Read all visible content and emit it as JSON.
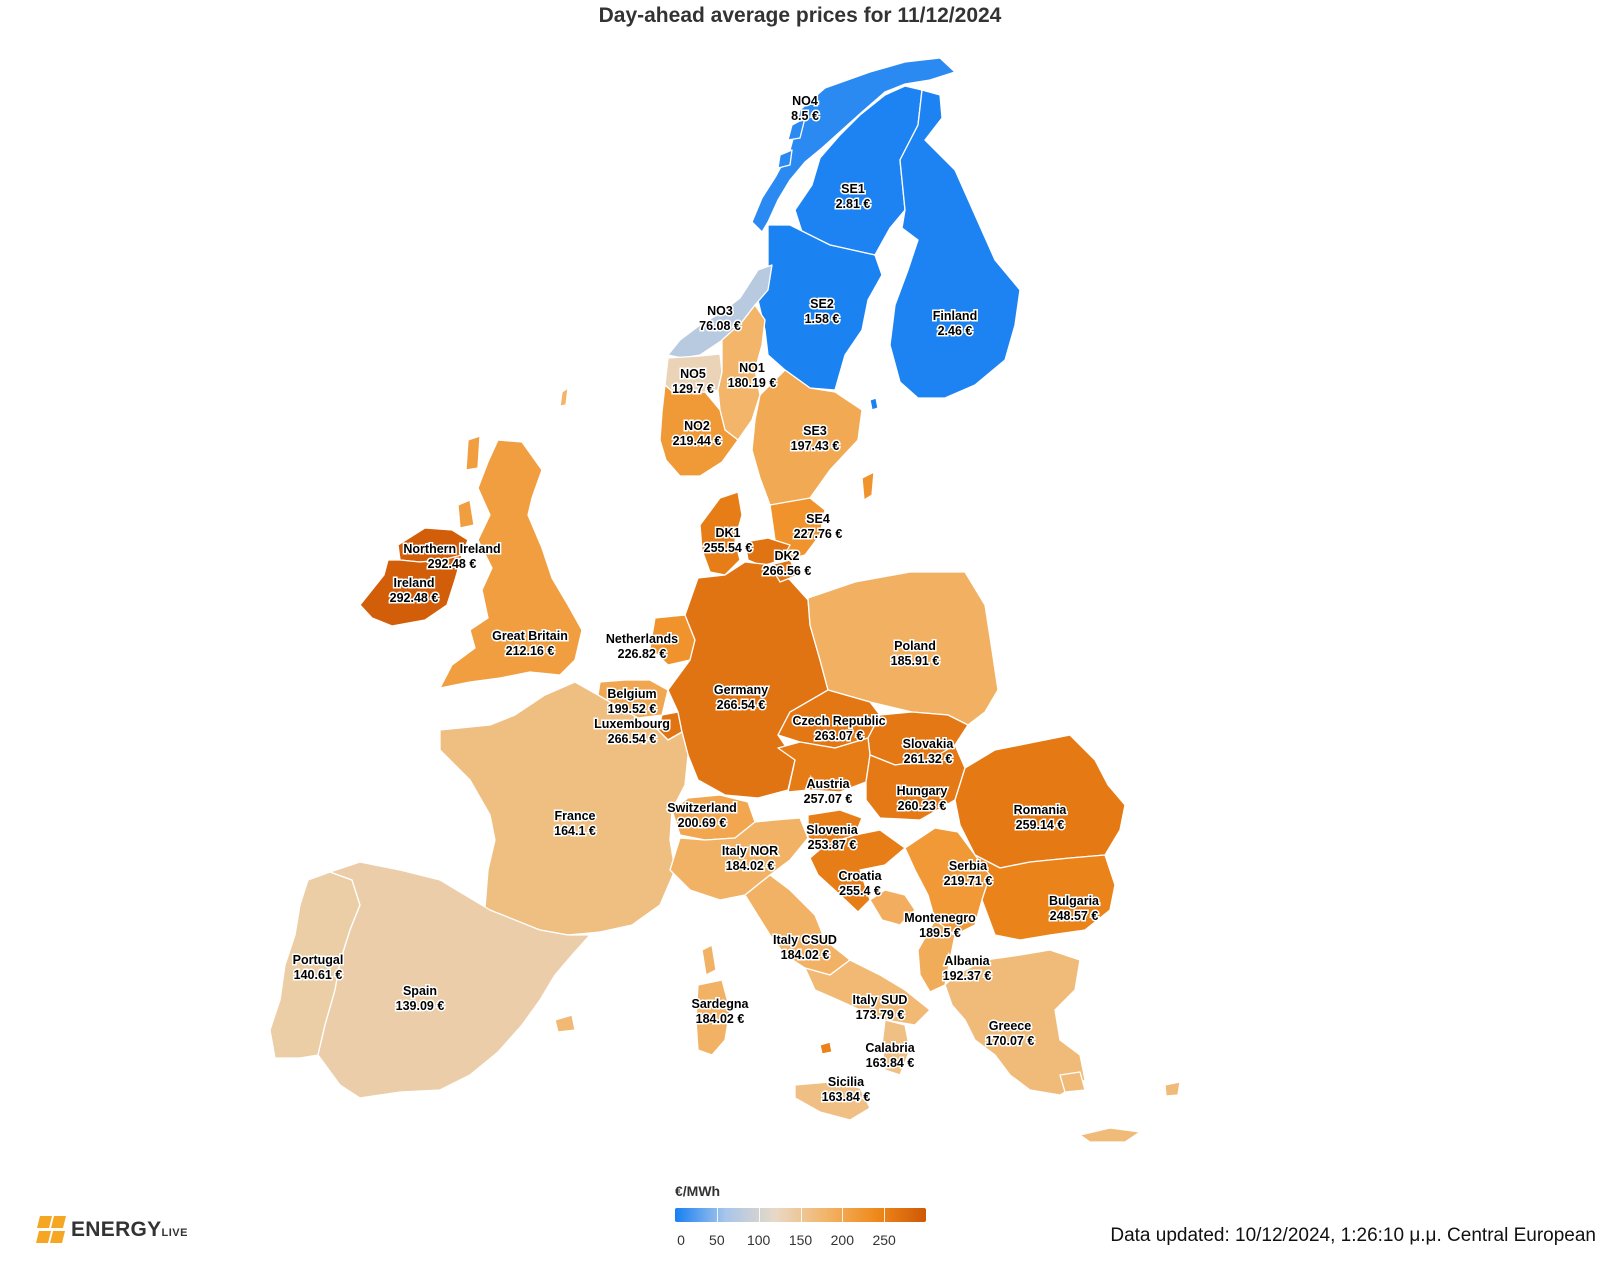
{
  "title": "Day-ahead average prices for 11/12/2024",
  "legend": {
    "unit": "€/MWh",
    "ticks": [
      0,
      50,
      100,
      150,
      200,
      250
    ],
    "min": 0,
    "max": 300,
    "colors": [
      "#1780f2",
      "#a7c5ea",
      "#e8d9c6",
      "#f2b56a",
      "#ef8a1c",
      "#cf5806"
    ]
  },
  "footnote": "Data updated: 10/12/2024, 1:26:10 μ.μ. Central European",
  "brand": {
    "name": "ENERGY",
    "suffix": "LIVE",
    "color": "#f5a623"
  },
  "regions": [
    {
      "key": "no4",
      "name": "NO4",
      "price": "8.5 €",
      "value": 8.5
    },
    {
      "key": "se1",
      "name": "SE1",
      "price": "2.81 €",
      "value": 2.81
    },
    {
      "key": "se2",
      "name": "SE2",
      "price": "1.58 €",
      "value": 1.58
    },
    {
      "key": "finland",
      "name": "Finland",
      "price": "2.46 €",
      "value": 2.46
    },
    {
      "key": "no3",
      "name": "NO3",
      "price": "76.08 €",
      "value": 76.08
    },
    {
      "key": "no5",
      "name": "NO5",
      "price": "129.7 €",
      "value": 129.7
    },
    {
      "key": "no1",
      "name": "NO1",
      "price": "180.19 €",
      "value": 180.19
    },
    {
      "key": "no2",
      "name": "NO2",
      "price": "219.44 €",
      "value": 219.44
    },
    {
      "key": "se3",
      "name": "SE3",
      "price": "197.43 €",
      "value": 197.43
    },
    {
      "key": "se4",
      "name": "SE4",
      "price": "227.76 €",
      "value": 227.76
    },
    {
      "key": "dk1",
      "name": "DK1",
      "price": "255.54 €",
      "value": 255.54
    },
    {
      "key": "dk2",
      "name": "DK2",
      "price": "266.56 €",
      "value": 266.56
    },
    {
      "key": "northern_ireland",
      "name": "Northern Ireland",
      "price": "292.48 €",
      "value": 292.48
    },
    {
      "key": "ireland",
      "name": "Ireland",
      "price": "292.48 €",
      "value": 292.48
    },
    {
      "key": "great_britain",
      "name": "Great Britain",
      "price": "212.16 €",
      "value": 212.16
    },
    {
      "key": "netherlands",
      "name": "Netherlands",
      "price": "226.82 €",
      "value": 226.82
    },
    {
      "key": "belgium",
      "name": "Belgium",
      "price": "199.52 €",
      "value": 199.52
    },
    {
      "key": "luxembourg",
      "name": "Luxembourg",
      "price": "266.54 €",
      "value": 266.54
    },
    {
      "key": "germany",
      "name": "Germany",
      "price": "266.54 €",
      "value": 266.54
    },
    {
      "key": "poland",
      "name": "Poland",
      "price": "185.91 €",
      "value": 185.91
    },
    {
      "key": "czech_republic",
      "name": "Czech Republic",
      "price": "263.07 €",
      "value": 263.07
    },
    {
      "key": "slovakia",
      "name": "Slovakia",
      "price": "261.32 €",
      "value": 261.32
    },
    {
      "key": "austria",
      "name": "Austria",
      "price": "257.07 €",
      "value": 257.07
    },
    {
      "key": "hungary",
      "name": "Hungary",
      "price": "260.23 €",
      "value": 260.23
    },
    {
      "key": "romania",
      "name": "Romania",
      "price": "259.14 €",
      "value": 259.14
    },
    {
      "key": "france",
      "name": "France",
      "price": "164.1 €",
      "value": 164.1
    },
    {
      "key": "switzerland",
      "name": "Switzerland",
      "price": "200.69 €",
      "value": 200.69
    },
    {
      "key": "slovenia",
      "name": "Slovenia",
      "price": "253.87 €",
      "value": 253.87
    },
    {
      "key": "italy_nor",
      "name": "Italy NOR",
      "price": "184.02 €",
      "value": 184.02
    },
    {
      "key": "croatia",
      "name": "Croatia",
      "price": "255.4 €",
      "value": 255.4
    },
    {
      "key": "serbia",
      "name": "Serbia",
      "price": "219.71 €",
      "value": 219.71
    },
    {
      "key": "bulgaria",
      "name": "Bulgaria",
      "price": "248.57 €",
      "value": 248.57
    },
    {
      "key": "montenegro",
      "name": "Montenegro",
      "price": "189.5 €",
      "value": 189.5
    },
    {
      "key": "italy_csud",
      "name": "Italy CSUD",
      "price": "184.02 €",
      "value": 184.02
    },
    {
      "key": "albania",
      "name": "Albania",
      "price": "192.37 €",
      "value": 192.37
    },
    {
      "key": "portugal",
      "name": "Portugal",
      "price": "140.61 €",
      "value": 140.61
    },
    {
      "key": "spain",
      "name": "Spain",
      "price": "139.09 €",
      "value": 139.09
    },
    {
      "key": "sardegna",
      "name": "Sardegna",
      "price": "184.02 €",
      "value": 184.02
    },
    {
      "key": "italy_sud",
      "name": "Italy SUD",
      "price": "173.79 €",
      "value": 173.79
    },
    {
      "key": "greece",
      "name": "Greece",
      "price": "170.07 €",
      "value": 170.07
    },
    {
      "key": "calabria",
      "name": "Calabria",
      "price": "163.84 €",
      "value": 163.84
    },
    {
      "key": "sicilia",
      "name": "Sicilia",
      "price": "163.84 €",
      "value": 163.84
    }
  ]
}
